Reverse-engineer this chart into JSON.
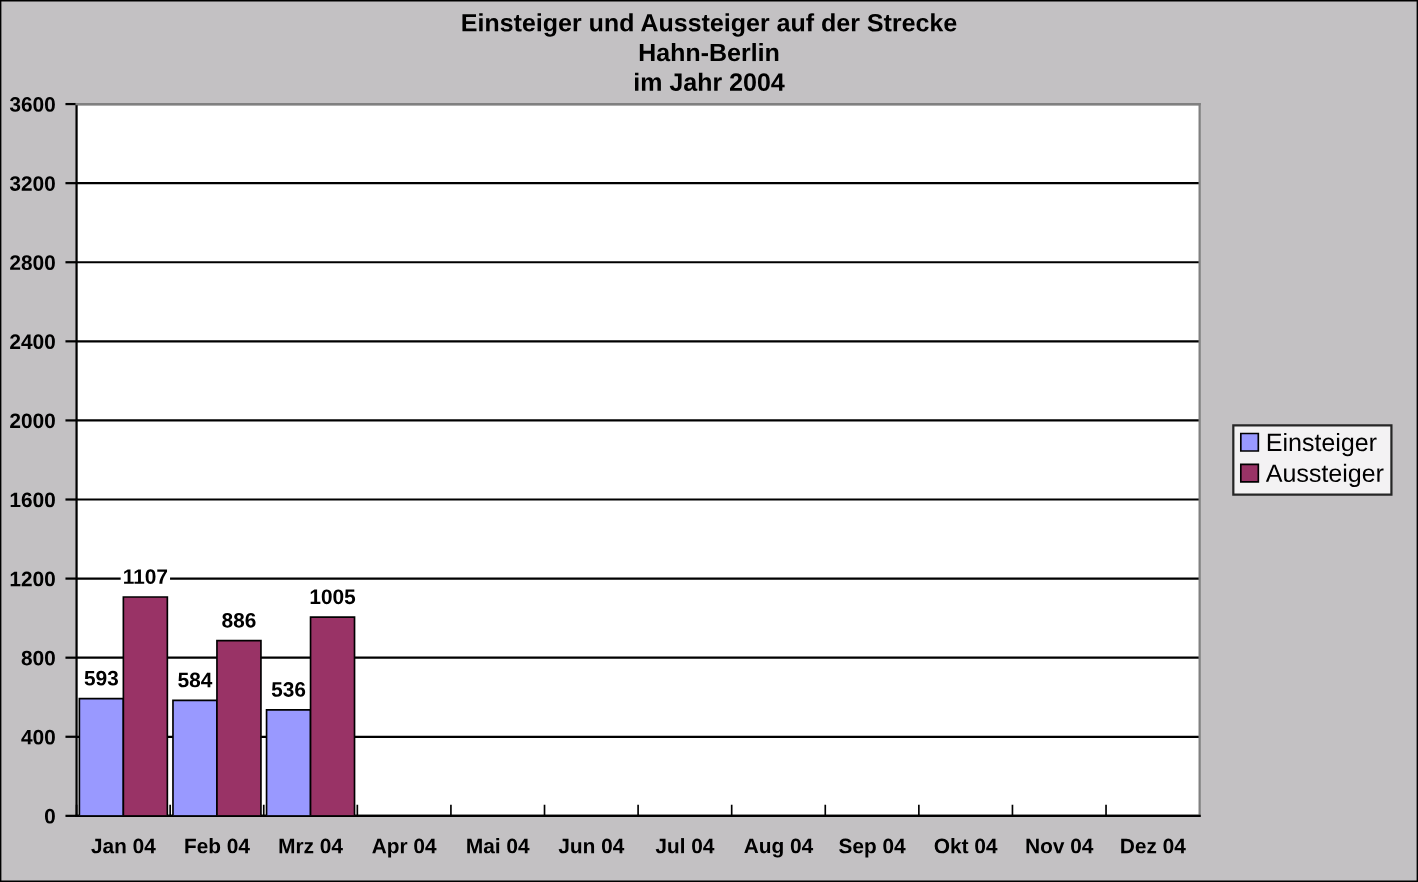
{
  "chart_data": {
    "type": "bar",
    "title": "Einsteiger und Aussteiger auf der Strecke\nHahn-Berlin\nim Jahr 2004",
    "categories": [
      "Jan 04",
      "Feb 04",
      "Mrz 04",
      "Apr 04",
      "Mai 04",
      "Jun 04",
      "Jul 04",
      "Aug 04",
      "Sep 04",
      "Okt 04",
      "Nov 04",
      "Dez 04"
    ],
    "series": [
      {
        "name": "Einsteiger",
        "color": "#9999ff",
        "values": [
          593,
          584,
          536,
          null,
          null,
          null,
          null,
          null,
          null,
          null,
          null,
          null
        ]
      },
      {
        "name": "Aussteiger",
        "color": "#993366",
        "values": [
          1107,
          886,
          1005,
          null,
          null,
          null,
          null,
          null,
          null,
          null,
          null,
          null
        ]
      }
    ],
    "ylim": [
      0,
      3600
    ],
    "yticks": [
      0,
      400,
      800,
      1200,
      1600,
      2000,
      2400,
      2800,
      3200,
      3600
    ],
    "grid": "y",
    "legend": "right",
    "data_labels": true
  }
}
